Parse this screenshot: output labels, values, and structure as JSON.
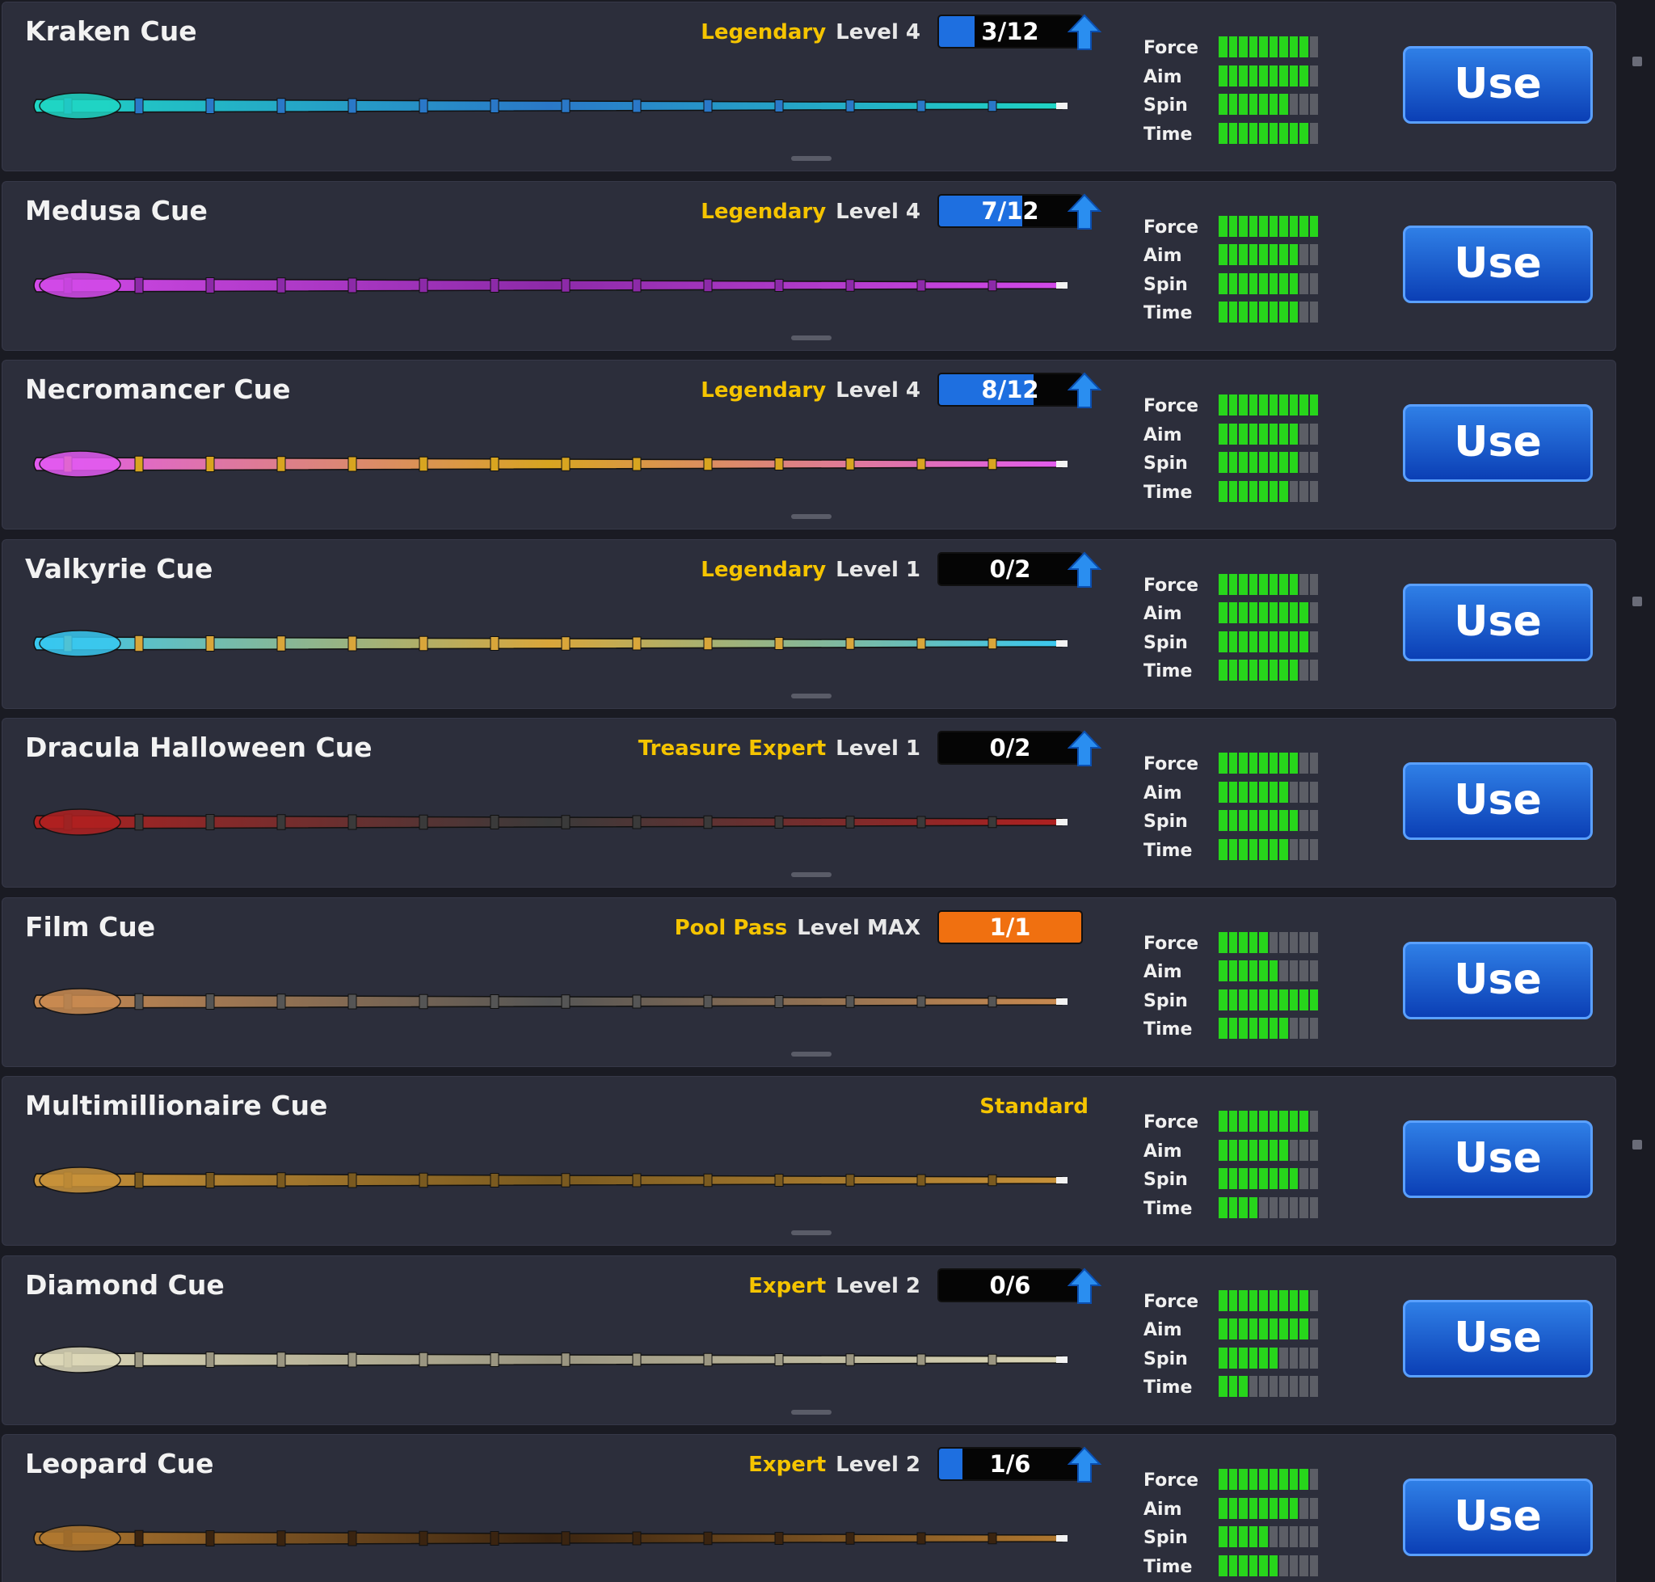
{
  "stat_segments": 10,
  "cues": [
    {
      "name": "Kraken Cue",
      "rarity": "Legendary",
      "level": "Level 4",
      "progress": {
        "value": 3,
        "max": 12,
        "label": "3/12",
        "color": "#1e6fe0"
      },
      "upgradable": true,
      "cue_colors": [
        "#1fd6c4",
        "#2a78c8"
      ],
      "stats": [
        {
          "name": "Force",
          "value": 9
        },
        {
          "name": "Aim",
          "value": 9
        },
        {
          "name": "Spin",
          "value": 7
        },
        {
          "name": "Time",
          "value": 9
        }
      ],
      "action": "Use"
    },
    {
      "name": "Medusa Cue",
      "rarity": "Legendary",
      "level": "Level 4",
      "progress": {
        "value": 7,
        "max": 12,
        "label": "7/12",
        "color": "#1e6fe0"
      },
      "upgradable": true,
      "cue_colors": [
        "#d24ae8",
        "#8c2aa8"
      ],
      "stats": [
        {
          "name": "Force",
          "value": 10
        },
        {
          "name": "Aim",
          "value": 8
        },
        {
          "name": "Spin",
          "value": 8
        },
        {
          "name": "Time",
          "value": 8
        }
      ],
      "action": "Use"
    },
    {
      "name": "Necromancer Cue",
      "rarity": "Legendary",
      "level": "Level 4",
      "progress": {
        "value": 8,
        "max": 12,
        "label": "8/12",
        "color": "#1e6fe0"
      },
      "upgradable": true,
      "cue_colors": [
        "#e25af0",
        "#d8a520"
      ],
      "stats": [
        {
          "name": "Force",
          "value": 10
        },
        {
          "name": "Aim",
          "value": 8
        },
        {
          "name": "Spin",
          "value": 8
        },
        {
          "name": "Time",
          "value": 7
        }
      ],
      "action": "Use"
    },
    {
      "name": "Valkyrie Cue",
      "rarity": "Legendary",
      "level": "Level 1",
      "progress": {
        "value": 0,
        "max": 2,
        "label": "0/2",
        "color": "#1e6fe0"
      },
      "upgradable": true,
      "cue_colors": [
        "#38c8f0",
        "#d9a63a"
      ],
      "stats": [
        {
          "name": "Force",
          "value": 8
        },
        {
          "name": "Aim",
          "value": 9
        },
        {
          "name": "Spin",
          "value": 9
        },
        {
          "name": "Time",
          "value": 8
        }
      ],
      "action": "Use"
    },
    {
      "name": "Dracula Halloween Cue",
      "rarity": "Treasure Expert",
      "level": "Level 1",
      "progress": {
        "value": 0,
        "max": 2,
        "label": "0/2",
        "color": "#1e6fe0"
      },
      "upgradable": true,
      "cue_colors": [
        "#b02020",
        "#3a3a3a"
      ],
      "stats": [
        {
          "name": "Force",
          "value": 8
        },
        {
          "name": "Aim",
          "value": 7
        },
        {
          "name": "Spin",
          "value": 8
        },
        {
          "name": "Time",
          "value": 7
        }
      ],
      "action": "Use"
    },
    {
      "name": "Film Cue",
      "rarity": "Pool Pass",
      "level": "Level MAX",
      "progress": {
        "value": 1,
        "max": 1,
        "label": "1/1",
        "color": "#f07010"
      },
      "upgradable": false,
      "cue_colors": [
        "#c98a50",
        "#555555"
      ],
      "stats": [
        {
          "name": "Force",
          "value": 5
        },
        {
          "name": "Aim",
          "value": 6
        },
        {
          "name": "Spin",
          "value": 10
        },
        {
          "name": "Time",
          "value": 7
        }
      ],
      "action": "Use"
    },
    {
      "name": "Multimillionaire Cue",
      "rarity": "Standard",
      "upgradable": false,
      "cue_colors": [
        "#c8923a",
        "#7a5a20"
      ],
      "stats": [
        {
          "name": "Force",
          "value": 9
        },
        {
          "name": "Aim",
          "value": 7
        },
        {
          "name": "Spin",
          "value": 8
        },
        {
          "name": "Time",
          "value": 4
        }
      ],
      "action": "Use"
    },
    {
      "name": "Diamond Cue",
      "rarity": "Expert",
      "level": "Level 2",
      "progress": {
        "value": 0,
        "max": 6,
        "label": "0/6",
        "color": "#1e6fe0"
      },
      "upgradable": true,
      "cue_colors": [
        "#ddd8b8",
        "#9a9580"
      ],
      "stats": [
        {
          "name": "Force",
          "value": 9
        },
        {
          "name": "Aim",
          "value": 9
        },
        {
          "name": "Spin",
          "value": 6
        },
        {
          "name": "Time",
          "value": 3
        }
      ],
      "action": "Use"
    },
    {
      "name": "Leopard Cue",
      "rarity": "Expert",
      "level": "Level 2",
      "progress": {
        "value": 1,
        "max": 6,
        "label": "1/6",
        "color": "#1e6fe0"
      },
      "upgradable": true,
      "cue_colors": [
        "#b07830",
        "#3a2410"
      ],
      "stats": [
        {
          "name": "Force",
          "value": 9
        },
        {
          "name": "Aim",
          "value": 8
        },
        {
          "name": "Spin",
          "value": 5
        },
        {
          "name": "Time",
          "value": 6
        }
      ],
      "action": "Use"
    }
  ]
}
